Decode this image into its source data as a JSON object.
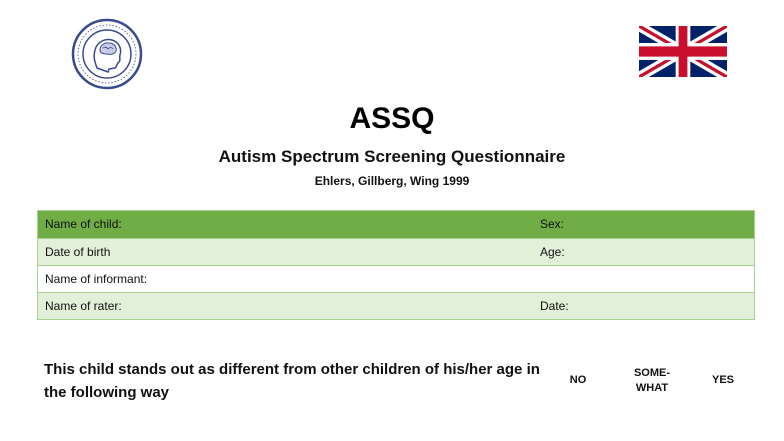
{
  "header": {
    "title": "ASSQ",
    "subtitle": "Autism Spectrum Screening Questionnaire",
    "authors": "Ehlers, Gillberg, Wing 1999"
  },
  "icons": {
    "seal": "institution-seal-icon",
    "flag": "uk-flag-icon"
  },
  "colors": {
    "header_row": "#70ad47",
    "shaded_row": "#e2efd9",
    "border": "#a9cf8f",
    "seal": "#3b4a8c"
  },
  "form": {
    "rows": [
      {
        "left": "Name of child:",
        "right": "Sex:"
      },
      {
        "left": "Date of birth",
        "right": "Age:"
      },
      {
        "left": "Name of informant:",
        "right": ""
      },
      {
        "left": "Name of rater:",
        "right": "Date:"
      }
    ]
  },
  "question": {
    "heading": "This child stands out as different from other children of his/her age in the following way",
    "columns": {
      "no": "NO",
      "somewhat_line1": "SOME-",
      "somewhat_line2": "WHAT",
      "yes": "YES"
    }
  }
}
